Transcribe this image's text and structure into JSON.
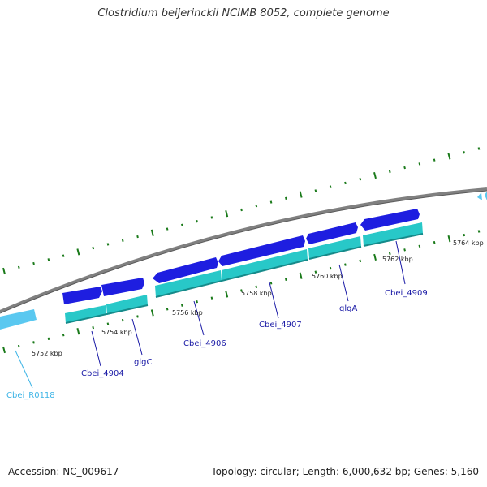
{
  "title": "Clostridium beijerinckii NCIMB 8052, complete genome",
  "footer": {
    "accession": "Accession: NC_009617",
    "summary": "Topology: circular; Length: 6,000,632 bp; Genes: 5,160"
  },
  "colors": {
    "backbone": "#808080",
    "cds_arrow": "#1e1ee0",
    "gene_bar": "#28c8c8",
    "rna": "#5ac8f0",
    "label_cds": "#1a1aa6",
    "label_rna": "#3cb4e6",
    "tick": "#1a7a1a"
  },
  "tick_labels": [
    "5752 kbp",
    "5754 kbp",
    "5756 kbp",
    "5758 kbp",
    "5760 kbp",
    "5762 kbp",
    "5764 kbp"
  ],
  "gene_labels": [
    {
      "name": "Cbei_R0118",
      "type": "rna"
    },
    {
      "name": "Cbei_4904",
      "type": "cds"
    },
    {
      "name": "glgC",
      "type": "cds"
    },
    {
      "name": "Cbei_4906",
      "type": "cds"
    },
    {
      "name": "Cbei_4907",
      "type": "cds"
    },
    {
      "name": "glgA",
      "type": "cds"
    },
    {
      "name": "Cbei_4909",
      "type": "cds"
    }
  ]
}
